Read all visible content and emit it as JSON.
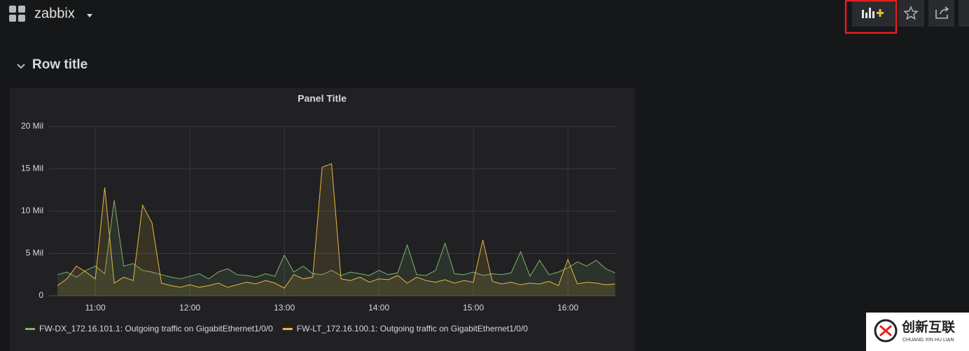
{
  "header": {
    "dashboard": "zabbix"
  },
  "row": {
    "title": "Row title"
  },
  "watermark": {
    "name": "创新互联",
    "subtitle": "CHUANG XIN HU LIAN"
  },
  "chart_data": {
    "type": "line",
    "title": "Panel Title",
    "x": [
      10.6,
      10.7,
      10.8,
      10.9,
      11.0,
      11.1,
      11.2,
      11.3,
      11.4,
      11.5,
      11.6,
      11.7,
      11.8,
      11.9,
      12.0,
      12.1,
      12.2,
      12.3,
      12.4,
      12.5,
      12.6,
      12.7,
      12.8,
      12.9,
      13.0,
      13.1,
      13.2,
      13.3,
      13.4,
      13.5,
      13.6,
      13.7,
      13.8,
      13.9,
      14.0,
      14.1,
      14.2,
      14.3,
      14.4,
      14.5,
      14.6,
      14.7,
      14.8,
      14.9,
      15.0,
      15.1,
      15.2,
      15.3,
      15.4,
      15.5,
      15.6,
      15.7,
      15.8,
      15.9,
      16.0,
      16.1,
      16.2,
      16.3,
      16.4,
      16.5
    ],
    "series": [
      {
        "name": "FW-DX_172.16.101.1: Outgoing traffic on GigabitEthernet1/0/0",
        "color": "#7eb26d",
        "values": [
          2.5,
          2.8,
          2.2,
          3.0,
          3.5,
          2.6,
          11.3,
          3.5,
          3.8,
          3.0,
          2.8,
          2.5,
          2.2,
          2.0,
          2.3,
          2.6,
          2.0,
          2.8,
          3.2,
          2.5,
          2.4,
          2.2,
          2.6,
          2.3,
          4.8,
          2.8,
          3.5,
          2.6,
          2.5,
          3.0,
          2.4,
          2.8,
          2.6,
          2.4,
          3.0,
          2.5,
          2.7,
          6.0,
          2.5,
          2.4,
          3.0,
          6.2,
          2.6,
          2.5,
          2.8,
          2.4,
          2.6,
          2.5,
          2.7,
          5.2,
          2.3,
          4.2,
          2.5,
          2.8,
          3.3,
          4.0,
          3.5,
          4.2,
          3.2,
          2.7
        ]
      },
      {
        "name": "FW-LT_172.16.100.1: Outgoing traffic on GigabitEthernet1/0/0",
        "color": "#eab839",
        "values": [
          1.2,
          2.0,
          3.5,
          2.8,
          2.0,
          12.8,
          1.5,
          2.2,
          1.8,
          10.7,
          8.6,
          1.5,
          1.2,
          1.0,
          1.3,
          1.0,
          1.2,
          1.5,
          1.0,
          1.3,
          1.6,
          1.4,
          1.8,
          1.5,
          0.9,
          2.5,
          2.0,
          2.2,
          15.2,
          15.6,
          2.0,
          1.8,
          2.2,
          1.6,
          2.0,
          1.9,
          2.4,
          1.5,
          2.2,
          1.8,
          1.6,
          1.9,
          1.5,
          1.8,
          1.6,
          6.6,
          1.7,
          1.4,
          1.6,
          1.3,
          1.5,
          1.4,
          1.7,
          1.2,
          4.3,
          1.4,
          1.6,
          1.5,
          1.3,
          1.4
        ]
      }
    ],
    "xlim": [
      10.51,
      16.51
    ],
    "xticks": [
      {
        "value": 11,
        "label": "11:00"
      },
      {
        "value": 12,
        "label": "12:00"
      },
      {
        "value": 13,
        "label": "13:00"
      },
      {
        "value": 14,
        "label": "14:00"
      },
      {
        "value": 15,
        "label": "15:00"
      },
      {
        "value": 16,
        "label": "16:00"
      }
    ],
    "ylim": [
      0,
      20
    ],
    "yticks": [
      0,
      {
        "value": 5,
        "label": "5 Mil"
      },
      {
        "value": 10,
        "label": "10 Mil"
      },
      {
        "value": 15,
        "label": "15 Mil"
      },
      {
        "value": 20,
        "label": "20 Mil"
      }
    ],
    "grid": true,
    "fill": true
  }
}
